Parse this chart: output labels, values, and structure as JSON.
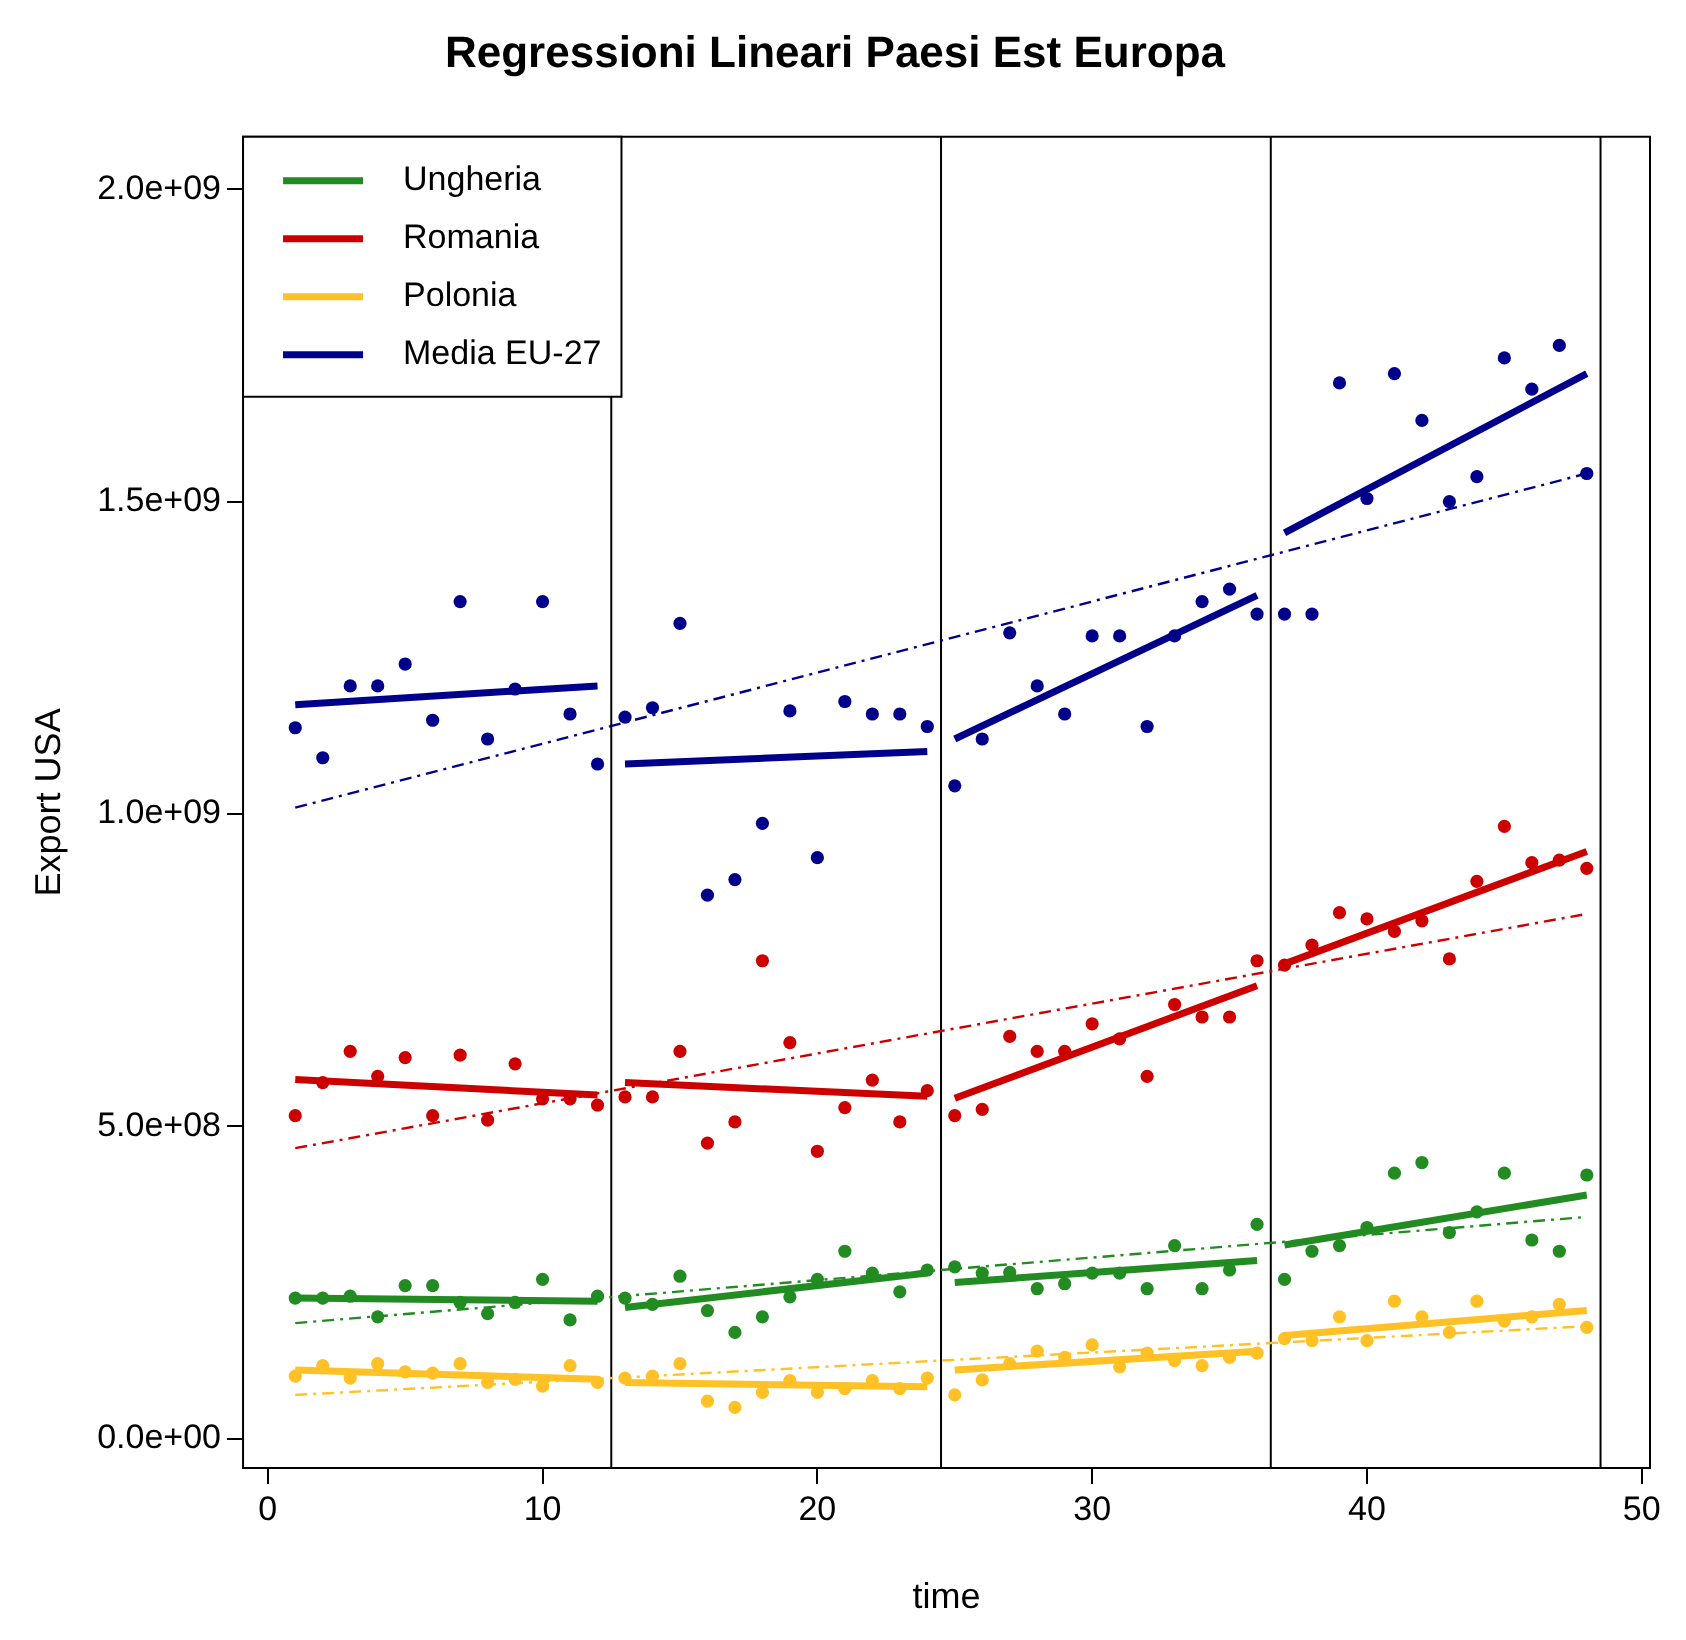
{
  "chart_data": {
    "type": "scatter",
    "title": "Regressioni Lineari Paesi Est Europa",
    "xlabel": "time",
    "ylabel": "Export USA",
    "x": [
      1,
      2,
      3,
      4,
      5,
      6,
      7,
      8,
      9,
      10,
      11,
      12,
      13,
      14,
      15,
      16,
      17,
      18,
      19,
      20,
      21,
      22,
      23,
      24,
      25,
      26,
      27,
      28,
      29,
      30,
      31,
      32,
      33,
      34,
      35,
      36,
      37,
      38,
      39,
      40,
      41,
      42,
      43,
      44,
      45,
      46,
      47,
      48
    ],
    "xlim": [
      -0.9,
      50.3
    ],
    "xticks": [
      0,
      10,
      20,
      30,
      40,
      50
    ],
    "ylim": [
      -47000000.0,
      2084000000.0
    ],
    "yticks": [
      {
        "value": 0,
        "label": "0.0e+00"
      },
      {
        "value": 500000000.0,
        "label": "5.0e+08"
      },
      {
        "value": 1000000000.0,
        "label": "1.0e+09"
      },
      {
        "value": 1500000000.0,
        "label": "1.5e+09"
      },
      {
        "value": 2000000000.0,
        "label": "2.0e+09"
      }
    ],
    "grid": false,
    "legend": "top left",
    "ref_lines": [
      {
        "axis": "x",
        "value": 12.5,
        "color": "#000000"
      },
      {
        "axis": "x",
        "value": 24.5,
        "color": "#000000"
      },
      {
        "axis": "x",
        "value": 36.5,
        "color": "#000000"
      },
      {
        "axis": "x",
        "value": 48.5,
        "color": "#000000"
      }
    ],
    "series": [
      {
        "name": "Ungheria",
        "color": "#228b22",
        "marker": "circle",
        "values": [
          225000000.0,
          225000000.0,
          228000000.0,
          195000000.0,
          245000000.0,
          245000000.0,
          218000000.0,
          200000000.0,
          218000000.0,
          255000000.0,
          190000000.0,
          228000000.0,
          225000000.0,
          215000000.0,
          260000000.0,
          205000000.0,
          170000000.0,
          195000000.0,
          227000000.0,
          255000000.0,
          300000000.0,
          265000000.0,
          235000000.0,
          270000000.0,
          275000000.0,
          265000000.0,
          266000000.0,
          240000000.0,
          248000000.0,
          265000000.0,
          265000000.0,
          240000000.0,
          309000000.0,
          240000000.0,
          270000000.0,
          343000000.0,
          255000000.0,
          300000000.0,
          309000000.0,
          338000000.0,
          425000000.0,
          442000000.0,
          330000000.0,
          363000000.0,
          425000000.0,
          318000000.0,
          300000000.0,
          422000000.0
        ]
      },
      {
        "name": "Romania",
        "color": "#cd0000",
        "marker": "circle",
        "values": [
          517000000.0,
          570000000.0,
          620000000.0,
          580000000.0,
          610000000.0,
          517000000.0,
          614000000.0,
          510000000.0,
          600000000.0,
          544000000.0,
          544000000.0,
          534000000.0,
          547000000.0,
          547000000.0,
          620000000.0,
          473000000.0,
          507000000.0,
          765000000.0,
          634000000.0,
          460000000.0,
          530000000.0,
          574000000.0,
          507000000.0,
          557000000.0,
          517000000.0,
          527000000.0,
          644000000.0,
          620000000.0,
          620000000.0,
          664000000.0,
          640000000.0,
          580000000.0,
          695000000.0,
          675000000.0,
          675000000.0,
          765000000.0,
          758000000.0,
          790000000.0,
          842000000.0,
          832000000.0,
          812000000.0,
          829000000.0,
          768000000.0,
          892000000.0,
          980000000.0,
          922000000.0,
          926000000.0,
          913000000.0
        ]
      },
      {
        "name": "Polonia",
        "color": "#ffc125",
        "marker": "circle",
        "values": [
          100000000.0,
          117000000.0,
          97000000.0,
          120000000.0,
          107000000.0,
          105000000.0,
          120000000.0,
          90000000.0,
          95000000.0,
          84000000.0,
          117000000.0,
          90000000.0,
          97000000.0,
          100000000.0,
          120000000.0,
          60000000.0,
          50000000.0,
          74000000.0,
          93000000.0,
          74000000.0,
          80000000.0,
          93000000.0,
          80000000.0,
          97000000.0,
          70000000.0,
          94000000.0,
          120000000.0,
          140000000.0,
          130000000.0,
          150000000.0,
          115000000.0,
          137000000.0,
          125000000.0,
          117000000.0,
          130000000.0,
          137000000.0,
          160000000.0,
          157000000.0,
          195000000.0,
          157000000.0,
          220000000.0,
          195000000.0,
          170000000.0,
          220000000.0,
          188000000.0,
          195000000.0,
          215000000.0,
          178000000.0
        ]
      },
      {
        "name": "Media EU-27",
        "color": "#00008b",
        "marker": "circle",
        "values": [
          1138000000.0,
          1090000000.0,
          1205000000.0,
          1205000000.0,
          1240000000.0,
          1150000000.0,
          1340000000.0,
          1120000000.0,
          1200000000.0,
          1340000000.0,
          1160000000.0,
          1080000000.0,
          1155000000.0,
          1170000000.0,
          1305000000.0,
          870000000.0,
          895000000.0,
          985000000.0,
          1165000000.0,
          930000000.0,
          1180000000.0,
          1160000000.0,
          1160000000.0,
          1140000000.0,
          1045000000.0,
          1120000000.0,
          1290000000.0,
          1205000000.0,
          1160000000.0,
          1285000000.0,
          1285000000.0,
          1140000000.0,
          1285000000.0,
          1340000000.0,
          1360000000.0,
          1320000000.0,
          1320000000.0,
          1320000000.0,
          1690000000.0,
          1505000000.0,
          1705000000.0,
          1630000000.0,
          1500000000.0,
          1540000000.0,
          1730000000.0,
          1680000000.0,
          1750000000.0,
          1545000000.0
        ]
      },
      {
        "type": "line",
        "color": "#228b22",
        "marker": "none",
        "x": [
          1,
          12
        ],
        "values": [
          225000000.0,
          220000000.0
        ]
      },
      {
        "type": "line",
        "color": "#228b22",
        "marker": "none",
        "x": [
          13,
          24
        ],
        "values": [
          210000000.0,
          265000000.0
        ]
      },
      {
        "type": "line",
        "color": "#228b22",
        "marker": "none",
        "x": [
          25,
          36
        ],
        "values": [
          250000000.0,
          285000000.0
        ]
      },
      {
        "type": "line",
        "color": "#228b22",
        "marker": "none",
        "x": [
          37,
          48
        ],
        "values": [
          310000000.0,
          390000000.0
        ]
      },
      {
        "type": "line",
        "color": "#228b22",
        "marker": "none",
        "line_style": "dashed",
        "x": [
          1,
          48
        ],
        "values": [
          185000000.0,
          355000000.0
        ]
      },
      {
        "type": "line",
        "color": "#cd0000",
        "marker": "none",
        "x": [
          1,
          12
        ],
        "values": [
          575000000.0,
          550000000.0
        ]
      },
      {
        "type": "line",
        "color": "#cd0000",
        "marker": "none",
        "x": [
          13,
          24
        ],
        "values": [
          570000000.0,
          548000000.0
        ]
      },
      {
        "type": "line",
        "color": "#cd0000",
        "marker": "none",
        "x": [
          25,
          36
        ],
        "values": [
          545000000.0,
          725000000.0
        ]
      },
      {
        "type": "line",
        "color": "#cd0000",
        "marker": "none",
        "x": [
          37,
          48
        ],
        "values": [
          760000000.0,
          940000000.0
        ]
      },
      {
        "type": "line",
        "color": "#cd0000",
        "marker": "none",
        "line_style": "dashed",
        "x": [
          1,
          48
        ],
        "values": [
          465000000.0,
          840000000.0
        ]
      },
      {
        "type": "line",
        "color": "#ffc125",
        "marker": "none",
        "x": [
          1,
          12
        ],
        "values": [
          110000000.0,
          95000000.0
        ]
      },
      {
        "type": "line",
        "color": "#ffc125",
        "marker": "none",
        "x": [
          13,
          24
        ],
        "values": [
          90000000.0,
          83000000.0
        ]
      },
      {
        "type": "line",
        "color": "#ffc125",
        "marker": "none",
        "x": [
          25,
          36
        ],
        "values": [
          110000000.0,
          140000000.0
        ]
      },
      {
        "type": "line",
        "color": "#ffc125",
        "marker": "none",
        "x": [
          37,
          48
        ],
        "values": [
          165000000.0,
          205000000.0
        ]
      },
      {
        "type": "line",
        "color": "#ffc125",
        "marker": "none",
        "line_style": "dashed",
        "x": [
          1,
          48
        ],
        "values": [
          70000000.0,
          180000000.0
        ]
      },
      {
        "type": "line",
        "color": "#00008b",
        "marker": "none",
        "x": [
          1,
          12
        ],
        "values": [
          1175000000.0,
          1205000000.0
        ]
      },
      {
        "type": "line",
        "color": "#00008b",
        "marker": "none",
        "x": [
          13,
          24
        ],
        "values": [
          1080000000.0,
          1100000000.0
        ]
      },
      {
        "type": "line",
        "color": "#00008b",
        "marker": "none",
        "x": [
          25,
          36
        ],
        "values": [
          1120000000.0,
          1350000000.0
        ]
      },
      {
        "type": "line",
        "color": "#00008b",
        "marker": "none",
        "x": [
          37,
          48
        ],
        "values": [
          1450000000.0,
          1705000000.0
        ]
      },
      {
        "type": "line",
        "color": "#00008b",
        "marker": "none",
        "line_style": "dashed",
        "x": [
          1,
          48
        ],
        "values": [
          1010000000.0,
          1545000000.0
        ]
      }
    ]
  }
}
